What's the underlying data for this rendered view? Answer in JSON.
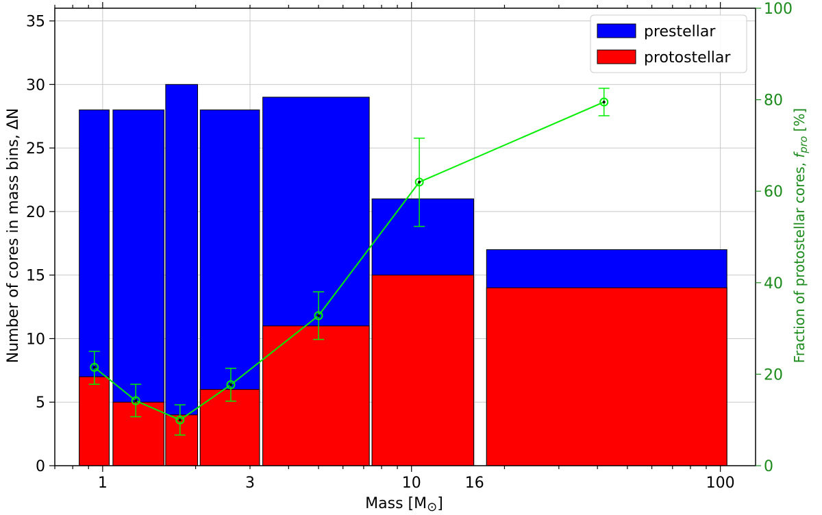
{
  "colors": {
    "prestellar": "#0000ff",
    "protostellar": "#ff0000",
    "fraction": "#00ee00",
    "right_axis": "#1a8a1a",
    "grid": "#c8c8c8"
  },
  "chart_data": {
    "type": "bar",
    "xlabel_text": "Mass [M",
    "xlabel_symbol": "⊙",
    "xlabel_close": "]",
    "ylabel": "Number of cores in mass bins, ΔN",
    "ylabel_right_prefix": "Fraction of protostellar cores, ",
    "ylabel_right_var": "f",
    "ylabel_right_sub": "pro",
    "ylabel_right_suffix": " [%]",
    "xscale": "log",
    "xlim": [
      0.7,
      130
    ],
    "ylim": [
      0,
      36
    ],
    "ylim_right": [
      0,
      100
    ],
    "grid": true,
    "legend_position": "top-right",
    "x_tick_labels": [
      "1",
      "3",
      "10",
      "16",
      "100"
    ],
    "x_tick_values": [
      1,
      3,
      10,
      16,
      100
    ],
    "y_tick_labels": [
      "0",
      "5",
      "10",
      "15",
      "20",
      "25",
      "30",
      "35"
    ],
    "y_tick_values": [
      0,
      5,
      10,
      15,
      20,
      25,
      30,
      35
    ],
    "y_right_tick_labels": [
      "0",
      "20",
      "40",
      "60",
      "80",
      "100"
    ],
    "y_right_tick_values": [
      0,
      20,
      40,
      60,
      80,
      100
    ],
    "bins": [
      {
        "low": 0.84,
        "high": 1.05,
        "total": 28,
        "protostellar": 7
      },
      {
        "low": 1.08,
        "high": 1.58,
        "total": 28,
        "protostellar": 5
      },
      {
        "low": 1.6,
        "high": 2.03,
        "total": 30,
        "protostellar": 4
      },
      {
        "low": 2.07,
        "high": 3.22,
        "total": 28,
        "protostellar": 6
      },
      {
        "low": 3.3,
        "high": 7.3,
        "total": 29,
        "protostellar": 11
      },
      {
        "low": 7.45,
        "high": 15.9,
        "total": 21,
        "protostellar": 15
      },
      {
        "low": 17.5,
        "high": 105,
        "total": 17,
        "protostellar": 14
      }
    ],
    "series": [
      {
        "name": "prestellar",
        "values": [
          28,
          28,
          30,
          28,
          29,
          21,
          17
        ]
      },
      {
        "name": "protostellar",
        "values": [
          7,
          5,
          4,
          6,
          11,
          15,
          14
        ]
      }
    ],
    "fraction": {
      "x": [
        0.94,
        1.28,
        1.78,
        2.6,
        5.0,
        10.6,
        42
      ],
      "y": [
        21.5,
        14.2,
        10.0,
        17.7,
        32.8,
        62.0,
        79.5
      ],
      "err_low": [
        3.7,
        3.5,
        3.3,
        3.6,
        5.2,
        9.7,
        3.0
      ],
      "err_high": [
        3.5,
        3.6,
        3.3,
        3.6,
        5.2,
        9.6,
        3.0
      ]
    }
  }
}
